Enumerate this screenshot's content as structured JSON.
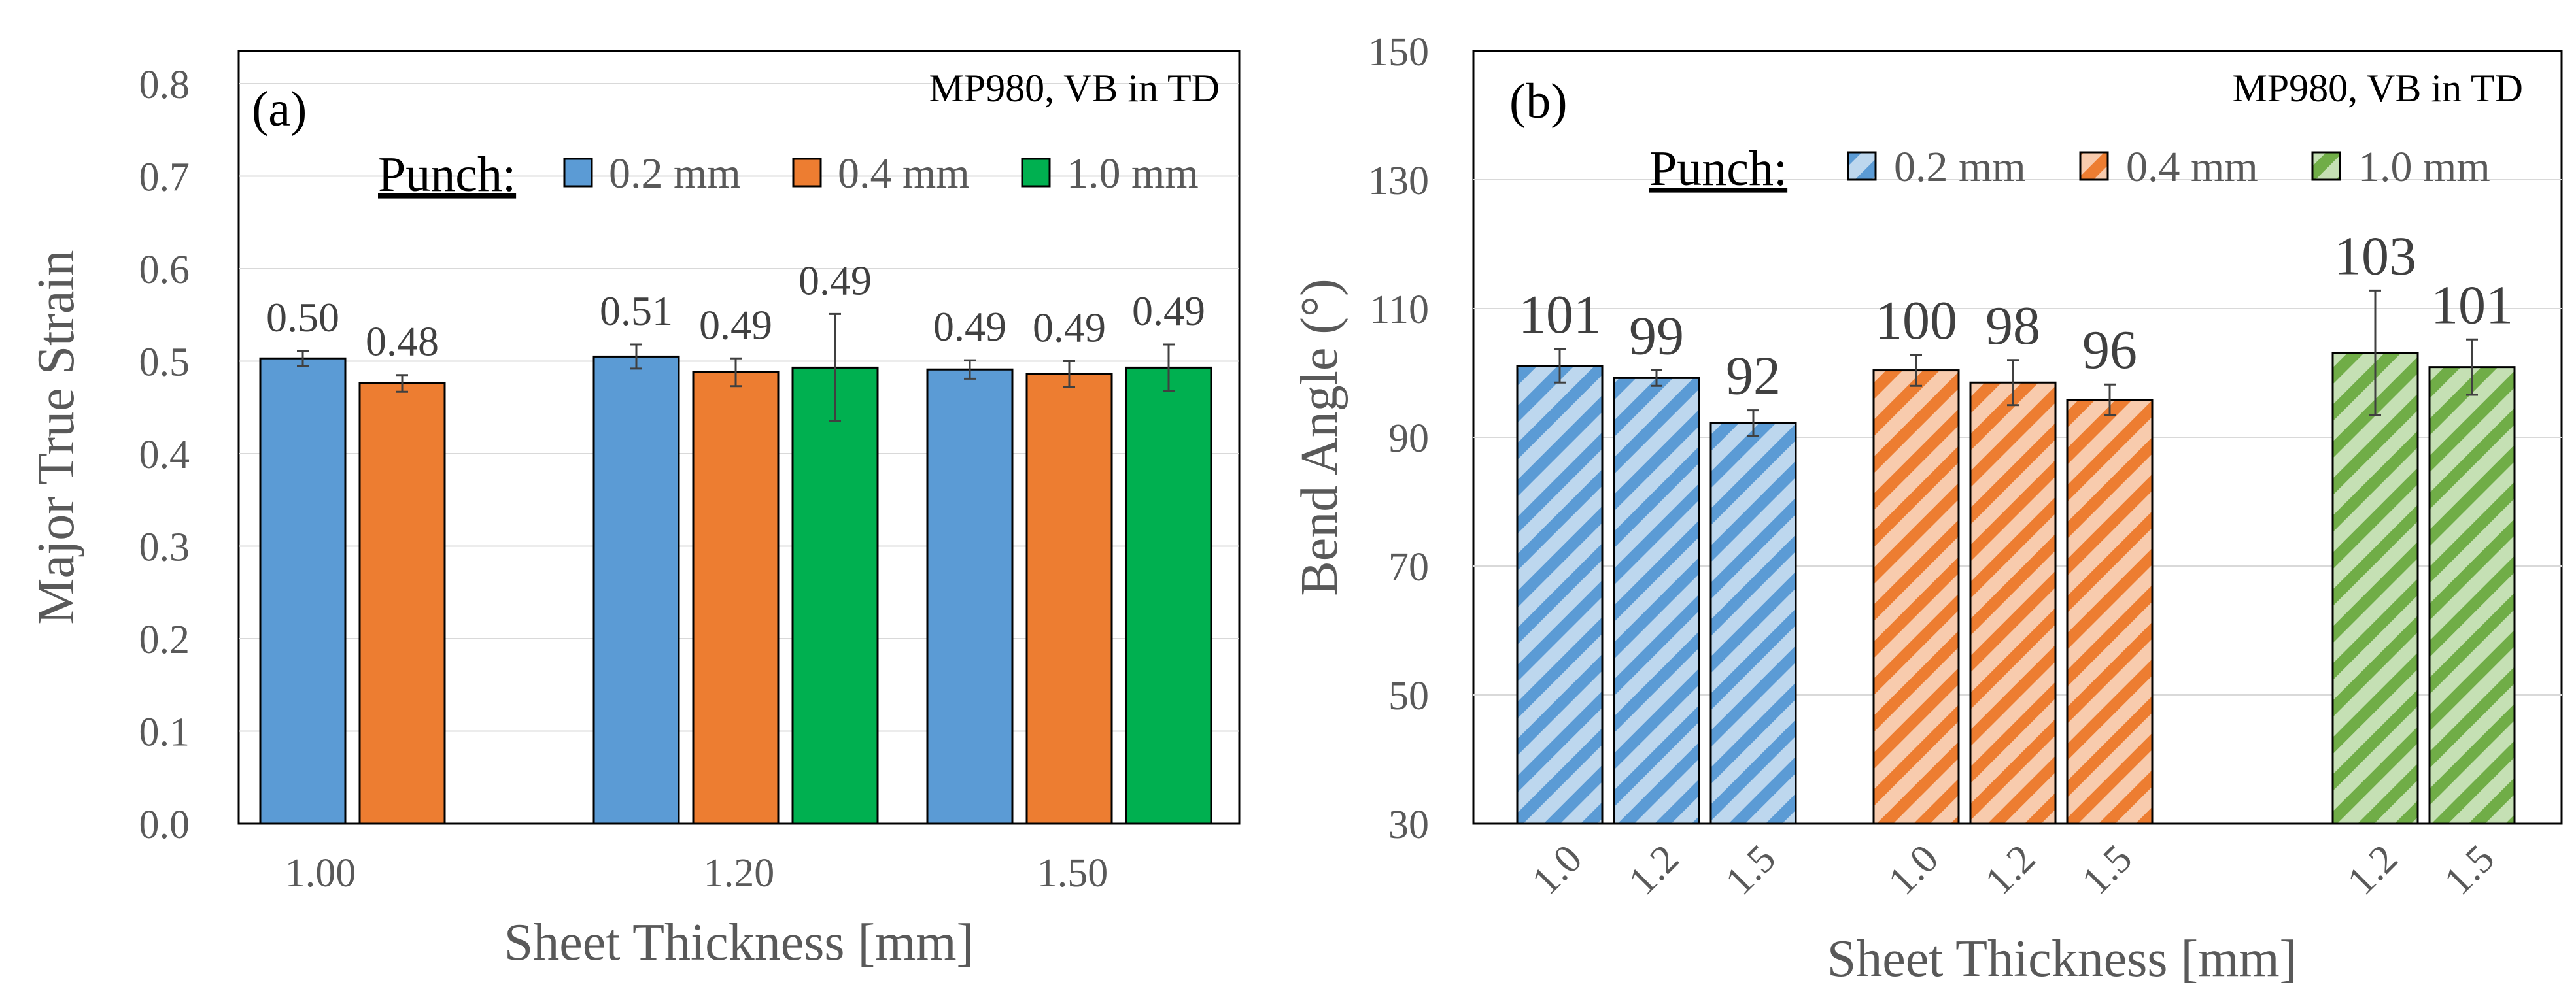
{
  "chart_data": [
    {
      "type": "bar",
      "panel_label": "(a)",
      "annotation": "MP980, VB in TD",
      "legend_title": "Punch:",
      "legend_position": "top-right",
      "xlabel": "Sheet Thickness [mm]",
      "ylabel": "Major True Strain",
      "ylim": [
        0.0,
        0.8
      ],
      "yticks": [
        "0.0",
        "0.1",
        "0.2",
        "0.3",
        "0.4",
        "0.5",
        "0.6",
        "0.7",
        "0.8"
      ],
      "grid": true,
      "categories": [
        "1.00",
        "1.20",
        "1.50"
      ],
      "series": [
        {
          "name": "0.2 mm",
          "color": "#5B9BD5",
          "values": [
            0.503,
            0.505,
            0.491
          ],
          "errors": [
            0.008,
            0.013,
            0.01
          ],
          "labels": [
            "0.50",
            "0.51",
            "0.49"
          ]
        },
        {
          "name": "0.4 mm",
          "color": "#ED7D31",
          "values": [
            0.476,
            0.488,
            0.486
          ],
          "errors": [
            0.009,
            0.015,
            0.014
          ],
          "labels": [
            "0.48",
            "0.49",
            "0.49"
          ]
        },
        {
          "name": "1.0 mm",
          "color": "#00B050",
          "values": [
            null,
            0.493,
            0.493
          ],
          "errors": [
            null,
            0.058,
            0.025
          ],
          "labels": [
            "",
            "0.49",
            "0.49"
          ]
        }
      ]
    },
    {
      "type": "bar",
      "panel_label": "(b)",
      "annotation": "MP980, VB in TD",
      "legend_title": "Punch:",
      "legend_position": "top-right",
      "xlabel": "Sheet Thickness [mm]",
      "ylabel": "Bend Angle (°)",
      "ylim": [
        30,
        150
      ],
      "yticks": [
        "30",
        "50",
        "70",
        "90",
        "110",
        "130",
        "150"
      ],
      "grid": true,
      "fill": "diagonal-stripes",
      "groups": [
        {
          "name": "0.2 mm",
          "color": "#5B9BD5",
          "light": "#BDD7EE",
          "categories": [
            "1.0",
            "1.2",
            "1.5"
          ],
          "values": [
            101.1,
            99.2,
            92.2
          ],
          "errors": [
            2.6,
            1.2,
            2.0
          ],
          "labels": [
            "101",
            "99",
            "92"
          ]
        },
        {
          "name": "0.4 mm",
          "color": "#ED7D31",
          "light": "#F8CBAD",
          "categories": [
            "1.0",
            "1.2",
            "1.5"
          ],
          "values": [
            100.4,
            98.5,
            95.8
          ],
          "errors": [
            2.4,
            3.5,
            2.4
          ],
          "labels": [
            "100",
            "98",
            "96"
          ]
        },
        {
          "name": "1.0 mm",
          "color": "#70AD47",
          "light": "#C5E0B4",
          "categories": [
            "1.2",
            "1.5"
          ],
          "values": [
            103.1,
            100.9
          ],
          "errors": [
            9.7,
            4.3
          ],
          "labels": [
            "103",
            "101"
          ]
        }
      ]
    }
  ]
}
